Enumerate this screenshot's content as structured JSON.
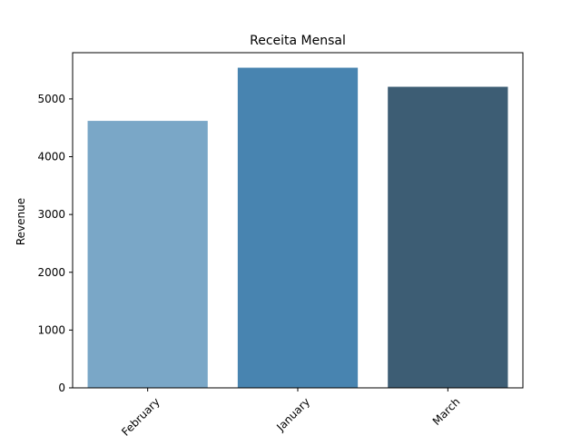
{
  "chart_data": {
    "type": "bar",
    "title": "Receita Mensal",
    "xlabel": "",
    "ylabel": "Revenue",
    "categories": [
      "February",
      "January",
      "March"
    ],
    "values": [
      4620,
      5540,
      5210
    ],
    "colors": [
      "#7aa7c7",
      "#4884b0",
      "#3d5d74"
    ],
    "ylim": [
      0,
      5800
    ],
    "yticks": [
      0,
      1000,
      2000,
      3000,
      4000,
      5000
    ],
    "xtick_rotation": 45,
    "grid": false,
    "legend": "none"
  }
}
